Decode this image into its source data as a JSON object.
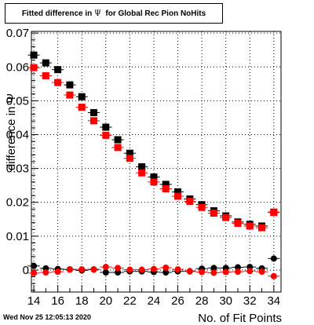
{
  "title": {
    "prefix": "Fitted difference in ",
    "symbol": "Ψ",
    "suffix": "  for Global Rec Pion NoHits"
  },
  "footer": {
    "timestamp": "Wed Nov 25 12:05:13 2020"
  },
  "chart_data": {
    "type": "scatter",
    "xlabel": "No. of Fit Points",
    "ylabel": "difference in  Ψ",
    "xlim": [
      13.8,
      34.6
    ],
    "ylim": [
      -0.0065,
      0.0705
    ],
    "x_ticks": [
      14,
      16,
      18,
      20,
      22,
      24,
      26,
      28,
      30,
      32,
      34
    ],
    "y_ticks": [
      0,
      0.01,
      0.02,
      0.03,
      0.04,
      0.05,
      0.06,
      0.07
    ],
    "y_tick_labels": [
      "0",
      "0.01",
      "0.02",
      "0.03",
      "0.04",
      "0.05",
      "0.06",
      "0.07"
    ],
    "grid": true,
    "x": [
      14,
      15,
      16,
      17,
      18,
      19,
      20,
      21,
      22,
      23,
      24,
      25,
      26,
      27,
      28,
      29,
      30,
      31,
      32,
      33,
      34
    ],
    "series": [
      {
        "marker": "square",
        "color": "#000000",
        "values": [
          0.0635,
          0.0612,
          0.0592,
          0.0547,
          0.0512,
          0.0465,
          0.0422,
          0.0385,
          0.0345,
          0.0305,
          0.0275,
          0.0253,
          0.0231,
          0.021,
          0.0193,
          0.0175,
          0.016,
          0.0142,
          0.0135,
          0.013,
          0.0171
        ]
      },
      {
        "marker": "square",
        "color": "#ff0000",
        "values": [
          0.0598,
          0.0574,
          0.0554,
          0.0517,
          0.0481,
          0.0441,
          0.0398,
          0.0362,
          0.033,
          0.0287,
          0.026,
          0.024,
          0.0218,
          0.0203,
          0.0185,
          0.0168,
          0.0155,
          0.0138,
          0.013,
          0.0125,
          0.017
        ]
      },
      {
        "marker": "circle",
        "color": "#000000",
        "values": [
          0.0012,
          0.0005,
          0.0003,
          0.0002,
          -0.0001,
          0.0002,
          -0.0007,
          -0.0007,
          -0.0004,
          -0.0004,
          -0.0006,
          -0.0007,
          -0.0004,
          -0.0004,
          0.0004,
          0.0006,
          0.0006,
          0.0008,
          0.0009,
          0.0005,
          0.0034
        ]
      },
      {
        "marker": "circle",
        "color": "#ff0000",
        "values": [
          -0.0009,
          -0.0007,
          -0.0005,
          0.0001,
          0.0002,
          0.0001,
          0.0009,
          0.0006,
          0.0001,
          0.0001,
          0.0003,
          0.0007,
          0.0002,
          -0.0003,
          -0.0006,
          -0.0008,
          -0.0006,
          -0.0005,
          -0.0003,
          -0.0005,
          -0.0018
        ]
      }
    ]
  }
}
